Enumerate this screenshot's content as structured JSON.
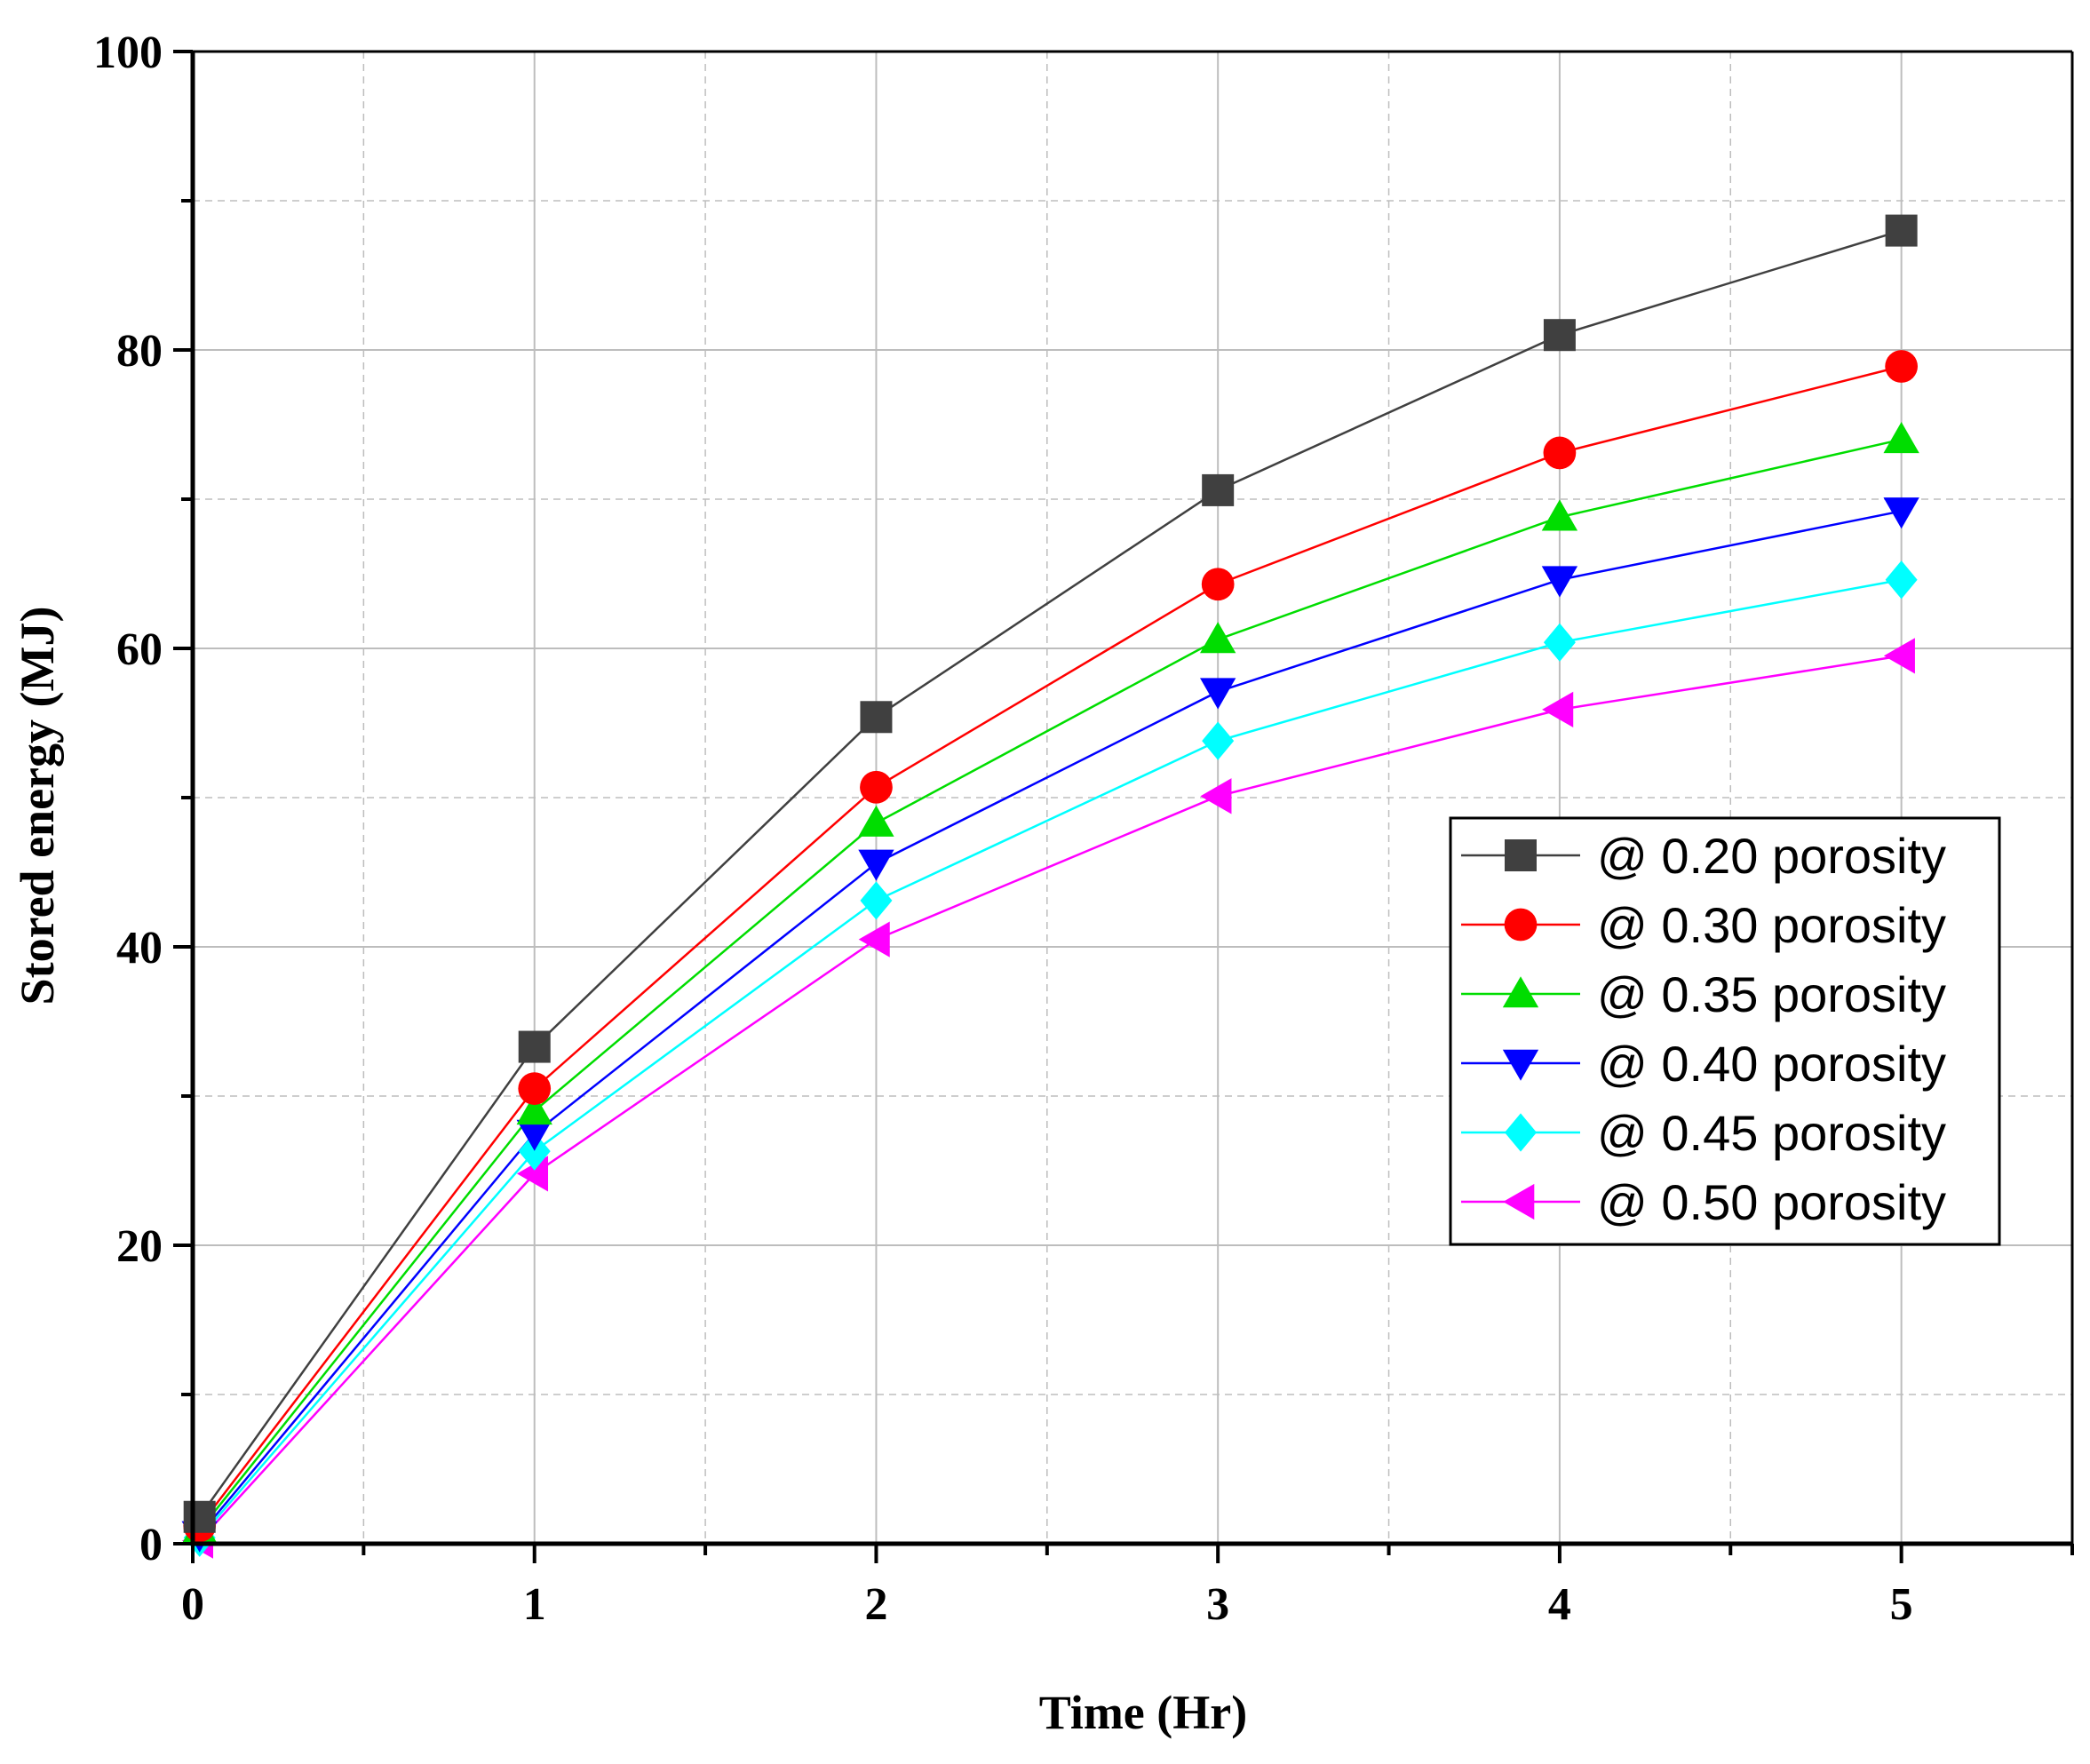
{
  "chart_data": {
    "type": "line",
    "title": "",
    "xlabel": "Time (Hr)",
    "ylabel": "Stored energy (MJ)",
    "xlim": [
      0,
      5.5
    ],
    "ylim": [
      0,
      100
    ],
    "x_ticks": [
      0,
      1,
      2,
      3,
      4,
      5
    ],
    "x_tick_labels": [
      "0",
      "1",
      "2",
      "3",
      "4",
      "5"
    ],
    "y_ticks": [
      0,
      20,
      40,
      60,
      80,
      100
    ],
    "y_tick_labels": [
      "0",
      "20",
      "40",
      "60",
      "80",
      "100"
    ],
    "grid": true,
    "legend_position": "center-right",
    "x": [
      0.02,
      1,
      2,
      3,
      4,
      5
    ],
    "series": [
      {
        "name": "@ 0.20 porosity",
        "color": "#404040",
        "marker": "square",
        "values": [
          1.8,
          33.3,
          55.4,
          70.6,
          81.0,
          88.0
        ]
      },
      {
        "name": "@ 0.30 porosity",
        "color": "#ff0000",
        "marker": "circle",
        "values": [
          1.2,
          30.5,
          50.7,
          64.3,
          73.1,
          78.9
        ]
      },
      {
        "name": "@ 0.35 porosity",
        "color": "#00dd00",
        "marker": "triangle-up",
        "values": [
          0.9,
          29.0,
          48.3,
          60.6,
          68.8,
          74.0
        ]
      },
      {
        "name": "@ 0.40 porosity",
        "color": "#0000ff",
        "marker": "triangle-down",
        "values": [
          0.6,
          27.5,
          45.6,
          57.1,
          64.6,
          69.2
        ]
      },
      {
        "name": "@ 0.45 porosity",
        "color": "#00ffff",
        "marker": "diamond",
        "values": [
          0.4,
          26.3,
          43.1,
          53.8,
          60.4,
          64.6
        ]
      },
      {
        "name": "@ 0.50 porosity",
        "color": "#ff00ff",
        "marker": "triangle-left",
        "values": [
          0.2,
          24.8,
          40.5,
          50.1,
          55.9,
          59.5
        ]
      }
    ]
  }
}
